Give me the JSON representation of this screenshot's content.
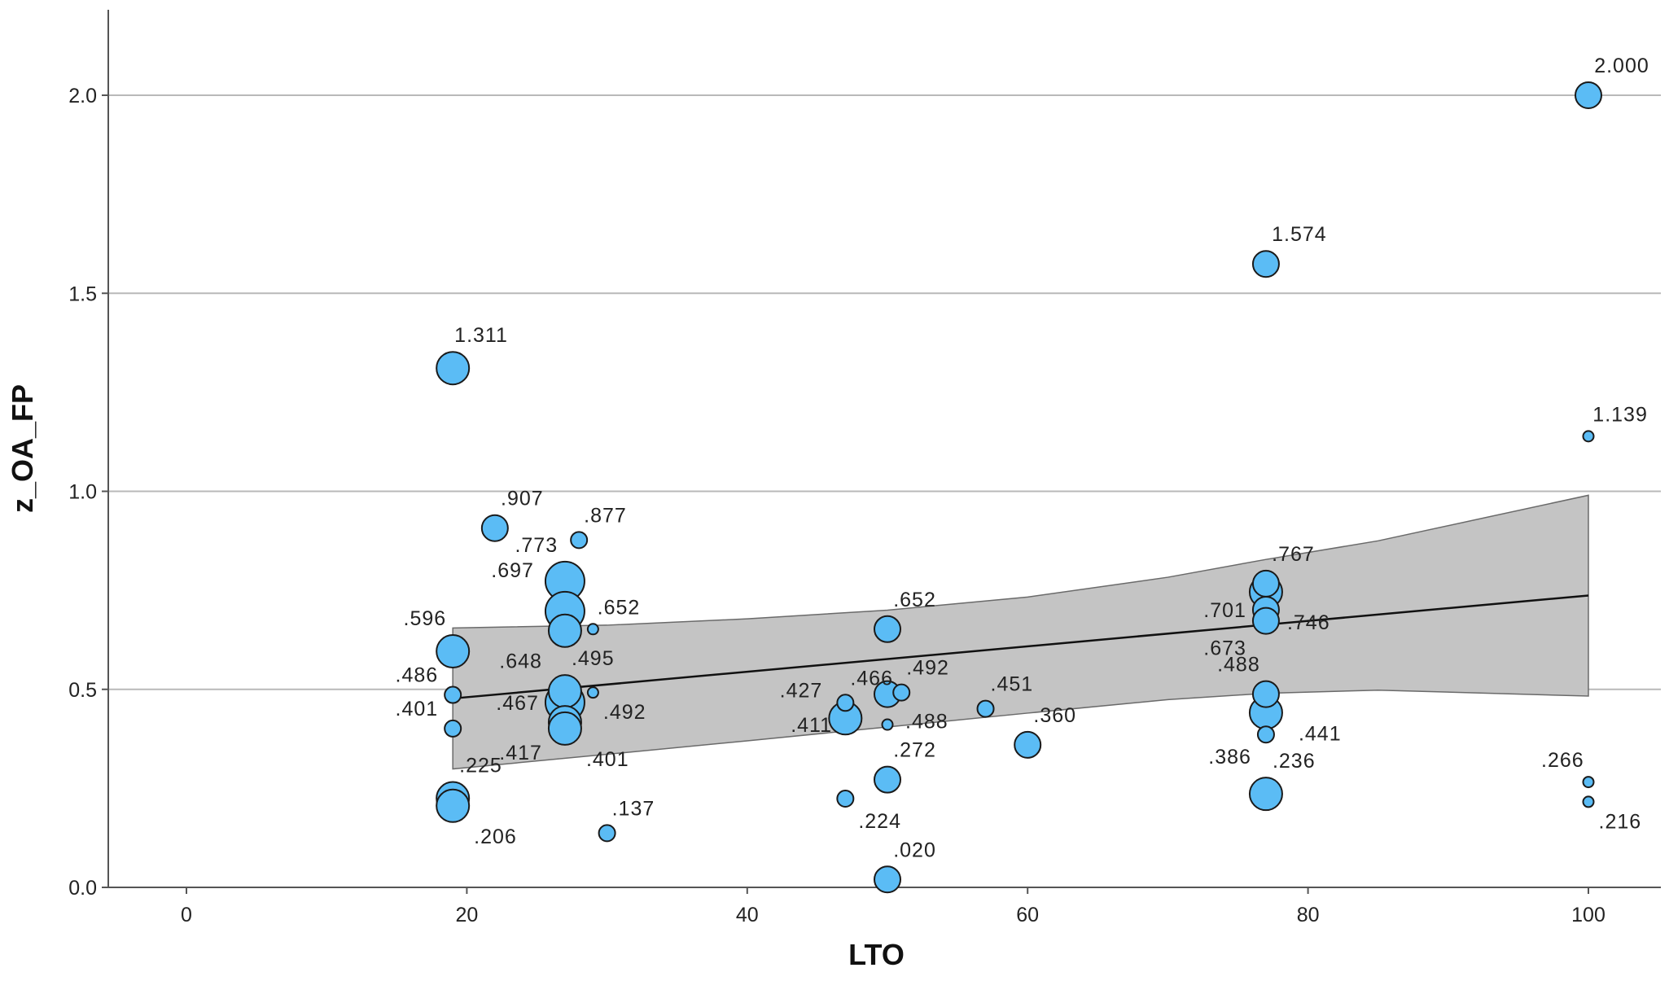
{
  "chart_data": {
    "type": "scatter",
    "title": "",
    "xlabel": "LTO",
    "ylabel": "z_OA_FP",
    "xlim": [
      -10,
      105
    ],
    "ylim": [
      0,
      2.2
    ],
    "x_ticks": [
      0,
      20,
      40,
      60,
      80,
      100
    ],
    "y_ticks": [
      0.0,
      0.5,
      1.0,
      1.5,
      2.0
    ],
    "x_tick_labels": [
      "0",
      "20",
      "40",
      "60",
      "80",
      "100"
    ],
    "y_tick_labels": [
      "0.0",
      "0.5",
      "1.0",
      "1.5",
      "2.0"
    ],
    "grid": "horizontal",
    "points": [
      {
        "x": 19,
        "y": 1.311,
        "size": 3,
        "label": "1.311",
        "pos": "above"
      },
      {
        "x": 19,
        "y": 0.596,
        "size": 3,
        "label": ".596",
        "pos": "above-left"
      },
      {
        "x": 19,
        "y": 0.486,
        "size": 1,
        "label": ".486",
        "pos": "upper-left"
      },
      {
        "x": 19,
        "y": 0.401,
        "size": 1,
        "label": ".401",
        "pos": "upper-left"
      },
      {
        "x": 19,
        "y": 0.225,
        "size": 3,
        "label": ".225",
        "pos": "above-right"
      },
      {
        "x": 19,
        "y": 0.206,
        "size": 3,
        "label": ".206",
        "pos": "below-right"
      },
      {
        "x": 22,
        "y": 0.907,
        "size": 2,
        "label": ".907",
        "pos": "above-right"
      },
      {
        "x": 27,
        "y": 0.773,
        "size": 4,
        "label": ".773",
        "pos": "above-left"
      },
      {
        "x": 27,
        "y": 0.697,
        "size": 4,
        "label": ".697",
        "pos": "above-left-far"
      },
      {
        "x": 27,
        "y": 0.648,
        "size": 3,
        "label": ".648",
        "pos": "below-left"
      },
      {
        "x": 27,
        "y": 0.495,
        "size": 3,
        "label": ".495",
        "pos": "above-right"
      },
      {
        "x": 27,
        "y": 0.467,
        "size": 4,
        "label": ".467",
        "pos": "left"
      },
      {
        "x": 27,
        "y": 0.417,
        "size": 3,
        "label": ".417",
        "pos": "below-left"
      },
      {
        "x": 27,
        "y": 0.401,
        "size": 3,
        "label": ".401",
        "pos": "below-right"
      },
      {
        "x": 28,
        "y": 0.877,
        "size": 1,
        "label": ".877",
        "pos": "above-right"
      },
      {
        "x": 29,
        "y": 0.652,
        "size": 0,
        "label": ".652",
        "pos": "above-right"
      },
      {
        "x": 29,
        "y": 0.492,
        "size": 0,
        "label": ".492",
        "pos": "below-right"
      },
      {
        "x": 30,
        "y": 0.137,
        "size": 1,
        "label": ".137",
        "pos": "above-right"
      },
      {
        "x": 47,
        "y": 0.466,
        "size": 1,
        "label": ".466",
        "pos": "above-right"
      },
      {
        "x": 47,
        "y": 0.427,
        "size": 3,
        "label": ".427",
        "pos": "upper-left"
      },
      {
        "x": 47,
        "y": 0.224,
        "size": 1,
        "label": ".224",
        "pos": "below-right"
      },
      {
        "x": 50,
        "y": 0.652,
        "size": 2,
        "label": ".652",
        "pos": "above-right"
      },
      {
        "x": 50,
        "y": 0.488,
        "size": 2,
        "label": ".488",
        "pos": "below-right"
      },
      {
        "x": 50,
        "y": 0.272,
        "size": 2,
        "label": ".272",
        "pos": "above-right"
      },
      {
        "x": 50,
        "y": 0.411,
        "size": 0,
        "label": ".411",
        "pos": "far-left"
      },
      {
        "x": 50,
        "y": 0.02,
        "size": 2,
        "label": ".020",
        "pos": "above-right"
      },
      {
        "x": 51,
        "y": 0.492,
        "size": 1,
        "label": ".492",
        "pos": "above-right"
      },
      {
        "x": 57,
        "y": 0.451,
        "size": 1,
        "label": ".451",
        "pos": "above-right"
      },
      {
        "x": 60,
        "y": 0.36,
        "size": 2,
        "label": ".360",
        "pos": "above-right"
      },
      {
        "x": 77,
        "y": 1.574,
        "size": 2,
        "label": "1.574",
        "pos": "above-right"
      },
      {
        "x": 77,
        "y": 0.767,
        "size": 2,
        "label": ".767",
        "pos": "above-right"
      },
      {
        "x": 77,
        "y": 0.746,
        "size": 3,
        "label": ".746",
        "pos": "below-right"
      },
      {
        "x": 77,
        "y": 0.701,
        "size": 2,
        "label": ".701",
        "pos": "left"
      },
      {
        "x": 77,
        "y": 0.673,
        "size": 2,
        "label": ".673",
        "pos": "below-left"
      },
      {
        "x": 77,
        "y": 0.488,
        "size": 2,
        "label": ".488",
        "pos": "above-left"
      },
      {
        "x": 77,
        "y": 0.441,
        "size": 3,
        "label": ".441",
        "pos": "below-right-far"
      },
      {
        "x": 77,
        "y": 0.386,
        "size": 1,
        "label": ".386",
        "pos": "below-left"
      },
      {
        "x": 77,
        "y": 0.236,
        "size": 3,
        "label": ".236",
        "pos": "above-right"
      },
      {
        "x": 100,
        "y": 2.0,
        "size": 2,
        "label": "2.000",
        "pos": "above-right"
      },
      {
        "x": 100,
        "y": 1.139,
        "size": 0,
        "label": "1.139",
        "pos": "above-right"
      },
      {
        "x": 100,
        "y": 0.266,
        "size": 0,
        "label": ".266",
        "pos": "above-left"
      },
      {
        "x": 100,
        "y": 0.216,
        "size": 0,
        "label": ".216",
        "pos": "below-right"
      }
    ],
    "fit_line": {
      "x": [
        19,
        100
      ],
      "y": [
        0.477,
        0.737
      ]
    },
    "confidence_band": {
      "x": [
        19,
        30,
        40,
        50,
        60,
        70,
        77,
        85,
        100
      ],
      "upper": [
        0.655,
        0.662,
        0.678,
        0.7,
        0.733,
        0.783,
        0.828,
        0.875,
        0.99
      ],
      "lower": [
        0.299,
        0.336,
        0.37,
        0.405,
        0.44,
        0.474,
        0.49,
        0.498,
        0.483
      ]
    }
  }
}
